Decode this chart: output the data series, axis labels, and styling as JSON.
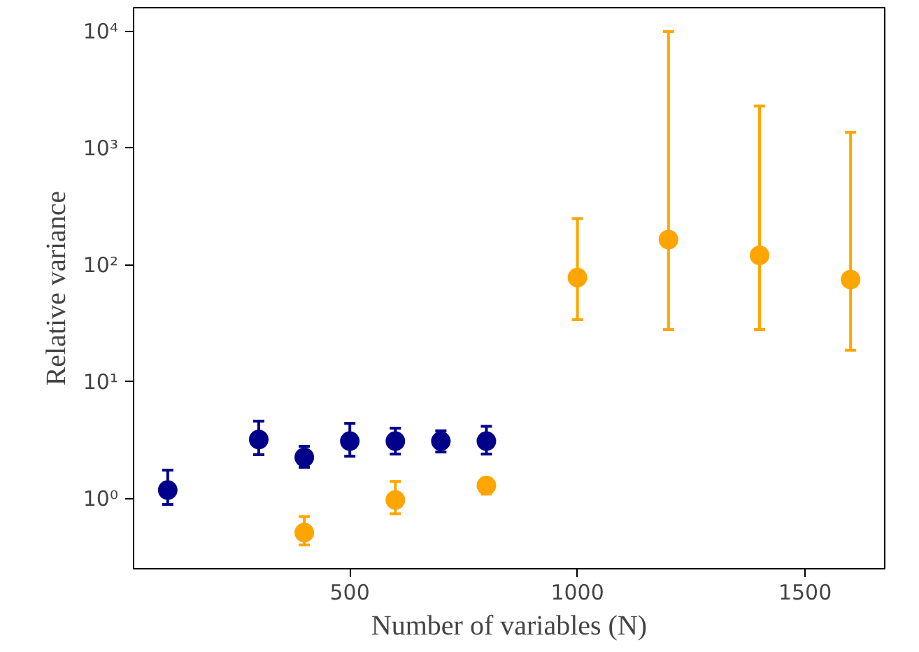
{
  "chart_data": {
    "type": "scatter",
    "xlabel": "Number of variables (N)",
    "ylabel": "Relative variance",
    "log": "y",
    "grid": false,
    "marker": "circle",
    "xlim": [
      25,
      1675
    ],
    "xticks": [
      500,
      1000,
      1500
    ],
    "ylim": [
      0.25,
      16000
    ],
    "yticks": [
      {
        "value": 1,
        "label": "10⁰"
      },
      {
        "value": 10,
        "label": "10¹"
      },
      {
        "value": 100,
        "label": "10²"
      },
      {
        "value": 1000,
        "label": "10³"
      },
      {
        "value": 10000,
        "label": "10⁴"
      }
    ],
    "series": [
      {
        "color": "#00008b",
        "x": [
          100,
          300,
          400,
          500,
          600,
          700,
          800
        ],
        "values": [
          1.18,
          3.2,
          2.25,
          3.1,
          3.1,
          3.1,
          3.1
        ],
        "errors": [
          [
            0.89,
            1.75
          ],
          [
            2.37,
            4.6
          ],
          [
            1.85,
            2.8
          ],
          [
            2.3,
            4.4
          ],
          [
            2.4,
            4.0
          ],
          [
            2.5,
            3.8
          ],
          [
            2.4,
            4.15
          ]
        ]
      },
      {
        "color": "#ffa500",
        "x": [
          400,
          600,
          800,
          1000,
          1200,
          1400,
          1600
        ],
        "values": [
          0.51,
          0.97,
          1.29,
          78,
          165,
          121,
          75
        ],
        "errors": [
          [
            0.4,
            0.7
          ],
          [
            0.74,
            1.4
          ],
          [
            1.09,
            1.48
          ],
          [
            34,
            250
          ],
          [
            28,
            10000
          ],
          [
            28,
            2300
          ],
          [
            18.6,
            1370
          ]
        ]
      }
    ]
  }
}
